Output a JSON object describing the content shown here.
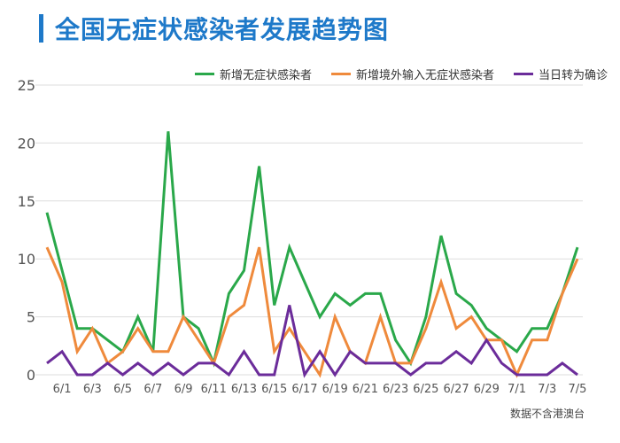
{
  "title": "全国无症状感染者发展趋势图",
  "footnote": "数据不含港澳台",
  "chart_data": {
    "type": "line",
    "title": "全国无症状感染者发展趋势图",
    "x": [
      "5/31",
      "6/1",
      "6/2",
      "6/3",
      "6/4",
      "6/5",
      "6/6",
      "6/7",
      "6/8",
      "6/9",
      "6/10",
      "6/11",
      "6/12",
      "6/13",
      "6/14",
      "6/15",
      "6/16",
      "6/17",
      "6/18",
      "6/19",
      "6/20",
      "6/21",
      "6/22",
      "6/23",
      "6/24",
      "6/25",
      "6/26",
      "6/27",
      "6/28",
      "6/29",
      "6/30",
      "7/1",
      "7/2",
      "7/3",
      "7/4",
      "7/5"
    ],
    "x_tick_labels": [
      "6/1",
      "6/3",
      "6/5",
      "6/7",
      "6/9",
      "6/11",
      "6/13",
      "6/15",
      "6/17",
      "6/19",
      "6/21",
      "6/23",
      "6/25",
      "6/27",
      "6/29",
      "7/1",
      "7/3",
      "7/5"
    ],
    "ylim": [
      0,
      25
    ],
    "yticks": [
      0,
      5,
      10,
      15,
      20,
      25
    ],
    "grid": "horizontal",
    "legend_position": "top-right",
    "series": [
      {
        "name": "新增无症状感染者",
        "color": "#2aa84a",
        "values": [
          14,
          9,
          4,
          4,
          3,
          2,
          5,
          2,
          21,
          5,
          4,
          1,
          7,
          9,
          18,
          6,
          11,
          8,
          5,
          7,
          6,
          7,
          7,
          3,
          1,
          5,
          12,
          7,
          6,
          4,
          3,
          2,
          4,
          4,
          7,
          11
        ]
      },
      {
        "name": "新增境外输入无症状感染者",
        "color": "#ef8a3c",
        "values": [
          11,
          8,
          2,
          4,
          1,
          2,
          4,
          2,
          2,
          5,
          3,
          1,
          5,
          6,
          11,
          2,
          4,
          2,
          0,
          5,
          2,
          1,
          5,
          1,
          1,
          4,
          8,
          4,
          5,
          3,
          3,
          0,
          3,
          3,
          7,
          10
        ]
      },
      {
        "name": "当日转为确诊",
        "color": "#6b2c9a",
        "values": [
          1,
          2,
          0,
          0,
          1,
          0,
          1,
          0,
          1,
          0,
          1,
          1,
          0,
          2,
          0,
          0,
          6,
          0,
          2,
          0,
          2,
          1,
          1,
          1,
          0,
          1,
          1,
          2,
          1,
          3,
          1,
          0,
          0,
          0,
          1,
          0
        ]
      }
    ]
  }
}
